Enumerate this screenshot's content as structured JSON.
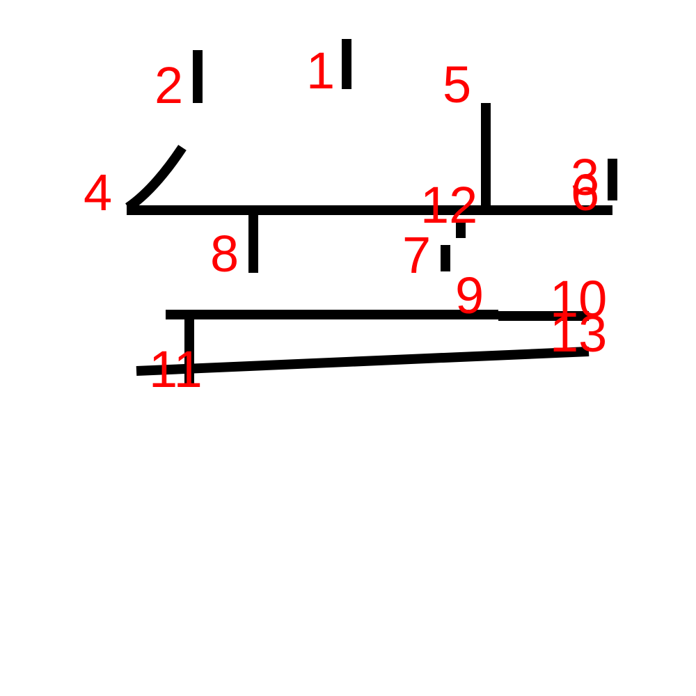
{
  "diagram": {
    "stroke_color": "#000000",
    "label_color": "#ff0000",
    "background": "#ffffff",
    "labels": [
      "1",
      "2",
      "3",
      "4",
      "5",
      "6",
      "7",
      "8",
      "9",
      "10",
      "11",
      "12",
      "13"
    ]
  }
}
